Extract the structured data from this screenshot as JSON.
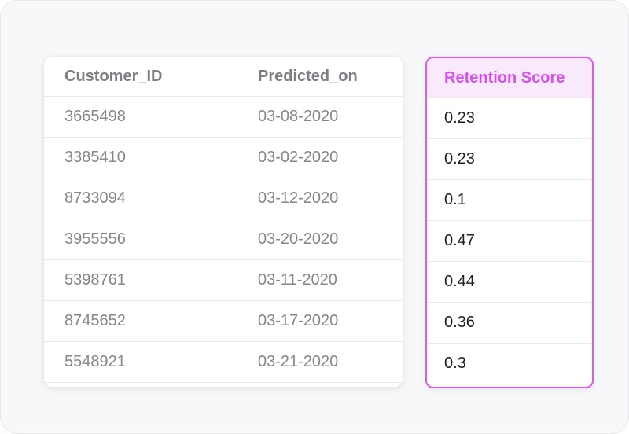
{
  "table": {
    "columns": [
      "Customer_ID",
      "Predicted_on"
    ],
    "rows": [
      {
        "customer_id": "3665498",
        "predicted_on": "03-08-2020"
      },
      {
        "customer_id": "3385410",
        "predicted_on": "03-02-2020"
      },
      {
        "customer_id": "8733094",
        "predicted_on": "03-12-2020"
      },
      {
        "customer_id": "3955556",
        "predicted_on": "03-20-2020"
      },
      {
        "customer_id": "5398761",
        "predicted_on": "03-11-2020"
      },
      {
        "customer_id": "8745652",
        "predicted_on": "03-17-2020"
      },
      {
        "customer_id": "5548921",
        "predicted_on": "03-21-2020"
      }
    ]
  },
  "score_column": {
    "header": "Retention Score",
    "values": [
      "0.23",
      "0.23",
      "0.1",
      "0.47",
      "0.44",
      "0.36",
      "0.3"
    ]
  },
  "colors": {
    "accent": "#e056ef",
    "accent_bg": "#f8e9fb",
    "background": "#f7f8fa"
  }
}
